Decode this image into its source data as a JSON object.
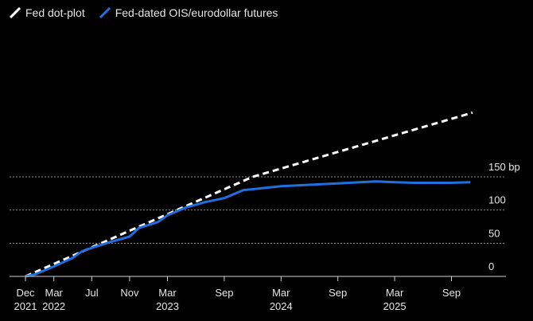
{
  "legend": {
    "dotplot_label": "Fed dot-plot",
    "futures_label": "Fed-dated OIS/eurodollar futures"
  },
  "colors": {
    "background": "#000000",
    "dotplot": "#ffffff",
    "futures": "#1f6fe0",
    "grid": "#8a8a8a",
    "text": "#e6e6e6"
  },
  "chart_data": {
    "type": "line",
    "xlabel": "",
    "ylabel": "",
    "y_unit_label": "bp",
    "ylim": [
      0,
      150
    ],
    "yticks": [
      0,
      50,
      100,
      150
    ],
    "xlim": [
      "2021-12",
      "2025-12"
    ],
    "xticks": [
      {
        "date": "2021-12",
        "line1": "Dec",
        "line2": "2021"
      },
      {
        "date": "2022-03",
        "line1": "Mar",
        "line2": "2022"
      },
      {
        "date": "2022-07",
        "line1": "Jul",
        "line2": ""
      },
      {
        "date": "2022-11",
        "line1": "Nov",
        "line2": ""
      },
      {
        "date": "2023-03",
        "line1": "Mar",
        "line2": "2023"
      },
      {
        "date": "2023-09",
        "line1": "Sep",
        "line2": ""
      },
      {
        "date": "2024-03",
        "line1": "Mar",
        "line2": "2024"
      },
      {
        "date": "2024-09",
        "line1": "Sep",
        "line2": ""
      },
      {
        "date": "2025-03",
        "line1": "Mar",
        "line2": "2025"
      },
      {
        "date": "2025-09",
        "line1": "Sep",
        "line2": ""
      }
    ],
    "grid": true,
    "series": [
      {
        "name": "Fed dot-plot",
        "style": "dashed",
        "points": [
          {
            "x": "2021-12",
            "y": 0
          },
          {
            "x": "2023-12",
            "y": 150
          },
          {
            "x": "2025-12",
            "y": 250
          }
        ]
      },
      {
        "name": "Fed-dated OIS/eurodollar futures",
        "style": "solid",
        "points": [
          {
            "x": "2021-12",
            "y": 0
          },
          {
            "x": "2022-01",
            "y": 3
          },
          {
            "x": "2022-03",
            "y": 15
          },
          {
            "x": "2022-05",
            "y": 28
          },
          {
            "x": "2022-06",
            "y": 38
          },
          {
            "x": "2022-07",
            "y": 43
          },
          {
            "x": "2022-09",
            "y": 52
          },
          {
            "x": "2022-11",
            "y": 60
          },
          {
            "x": "2022-12",
            "y": 73
          },
          {
            "x": "2023-02",
            "y": 82
          },
          {
            "x": "2023-03",
            "y": 92
          },
          {
            "x": "2023-05",
            "y": 104
          },
          {
            "x": "2023-07",
            "y": 112
          },
          {
            "x": "2023-09",
            "y": 118
          },
          {
            "x": "2023-11",
            "y": 130
          },
          {
            "x": "2024-01",
            "y": 133
          },
          {
            "x": "2024-03",
            "y": 136
          },
          {
            "x": "2024-09",
            "y": 140
          },
          {
            "x": "2025-01",
            "y": 143
          },
          {
            "x": "2025-03",
            "y": 142
          },
          {
            "x": "2025-05",
            "y": 141
          },
          {
            "x": "2025-09",
            "y": 141
          },
          {
            "x": "2025-11",
            "y": 142
          }
        ]
      }
    ]
  }
}
